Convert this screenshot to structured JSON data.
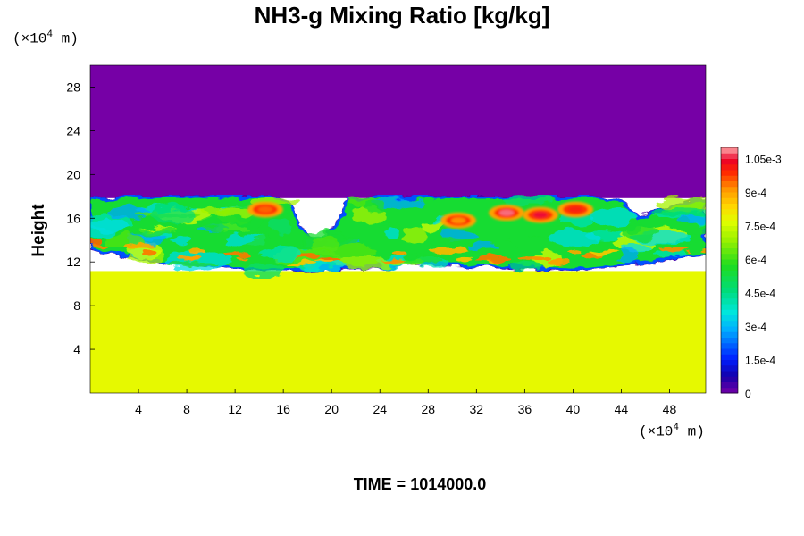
{
  "title": "NH3-g Mixing Ratio [kg/kg]",
  "ylabel": "Height",
  "unit": {
    "prefix": "(×10",
    "exp": "4",
    "suffix": " m)"
  },
  "time_label": "TIME = 1014000.0",
  "chart_data": {
    "type": "heatmap",
    "title": "NH3-g Mixing Ratio [kg/kg]",
    "xlabel": "",
    "ylabel": "Height",
    "x_unit": "(×10^4 m)",
    "y_unit": "(×10^4 m)",
    "xlim": [
      0,
      51
    ],
    "ylim": [
      0,
      30
    ],
    "x_ticks": [
      4,
      8,
      12,
      16,
      20,
      24,
      28,
      32,
      36,
      40,
      44,
      48
    ],
    "y_ticks": [
      4,
      8,
      12,
      16,
      20,
      24,
      28
    ],
    "colorbar": {
      "range": [
        0,
        0.0011
      ],
      "ticks": [
        {
          "value": 0,
          "label": "0"
        },
        {
          "value": 0.00015,
          "label": "1.5e-4"
        },
        {
          "value": 0.0003,
          "label": "3e-4"
        },
        {
          "value": 0.00045,
          "label": "4.5e-4"
        },
        {
          "value": 0.0006,
          "label": "6e-4"
        },
        {
          "value": 0.00075,
          "label": "7.5e-4"
        },
        {
          "value": 0.0009,
          "label": "9e-4"
        },
        {
          "value": 0.00105,
          "label": "1.05e-3"
        }
      ]
    },
    "regions": {
      "lower_uniform": {
        "y_range": [
          0,
          11
        ],
        "value": 0.00078
      },
      "upper_uniform": {
        "y_range": [
          18,
          30
        ],
        "value": 0.0
      },
      "cloud_top": [
        {
          "x": 0,
          "y": 17.8
        },
        {
          "x": 3,
          "y": 17.9
        },
        {
          "x": 8,
          "y": 18
        },
        {
          "x": 12,
          "y": 18
        },
        {
          "x": 15,
          "y": 17.9
        },
        {
          "x": 16.3,
          "y": 17.5
        },
        {
          "x": 17.5,
          "y": 15
        },
        {
          "x": 19,
          "y": 13.5
        },
        {
          "x": 20.5,
          "y": 15.5
        },
        {
          "x": 21.5,
          "y": 17.6
        },
        {
          "x": 24,
          "y": 18
        },
        {
          "x": 30,
          "y": 17.9
        },
        {
          "x": 37,
          "y": 17.9
        },
        {
          "x": 42,
          "y": 18
        },
        {
          "x": 44,
          "y": 17.4
        },
        {
          "x": 45.5,
          "y": 16
        },
        {
          "x": 48,
          "y": 17.2
        },
        {
          "x": 50,
          "y": 17.8
        },
        {
          "x": 51,
          "y": 17.6
        }
      ],
      "cloud_bottom": [
        {
          "x": 0,
          "y": 13
        },
        {
          "x": 5,
          "y": 12.2
        },
        {
          "x": 10,
          "y": 11.7
        },
        {
          "x": 14,
          "y": 11.2
        },
        {
          "x": 18,
          "y": 11.3
        },
        {
          "x": 22,
          "y": 11.5
        },
        {
          "x": 28,
          "y": 11.8
        },
        {
          "x": 34,
          "y": 11.6
        },
        {
          "x": 40,
          "y": 11.3
        },
        {
          "x": 45,
          "y": 11.8
        },
        {
          "x": 51,
          "y": 12.8
        }
      ],
      "maxima": [
        {
          "x": 34.5,
          "y": 16.5,
          "value": 0.00108
        },
        {
          "x": 37.3,
          "y": 16.3,
          "value": 0.00105
        },
        {
          "x": 40.2,
          "y": 16.8,
          "value": 0.001
        },
        {
          "x": 14.5,
          "y": 16.8,
          "value": 0.00095
        },
        {
          "x": 30.5,
          "y": 15.8,
          "value": 0.00092
        }
      ]
    }
  }
}
